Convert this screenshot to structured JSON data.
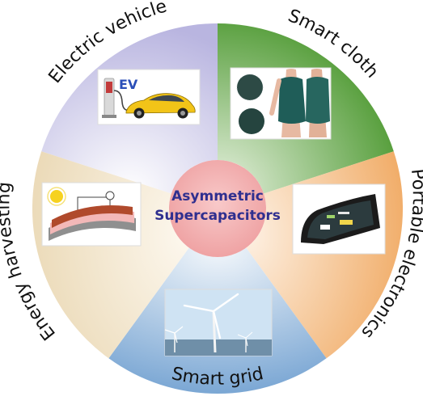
{
  "diagram": {
    "center": {
      "line1": "Asymmetric",
      "line2": "Supercapacitors",
      "color": "#f2a7a8"
    },
    "segments": [
      {
        "id": "electric-vehicle",
        "label": "Electric vehicle",
        "color": "#c7c3e6",
        "icon": "ev-charging-car"
      },
      {
        "id": "smart-cloth",
        "label": "Smart cloth",
        "color": "#6ea84a",
        "icon": "wearable-garment"
      },
      {
        "id": "portable-electronics",
        "label": "Portable electronics",
        "color": "#f3c38a",
        "icon": "flexible-phone"
      },
      {
        "id": "smart-grid",
        "label": "Smart grid",
        "color": "#9fc2e2",
        "icon": "wind-turbines"
      },
      {
        "id": "energy-harvesting",
        "label": "Energy harvesting",
        "color": "#f1e3c8",
        "icon": "solar-harvester"
      }
    ],
    "ev_badge": "EV"
  }
}
